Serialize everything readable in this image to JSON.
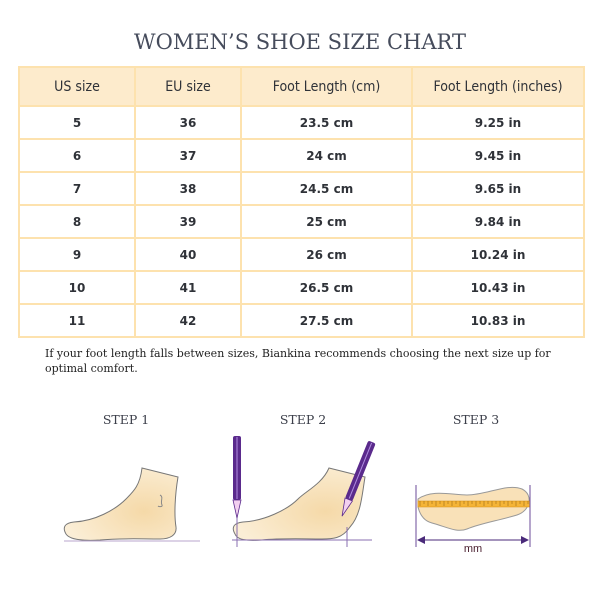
{
  "title": "WOMEN’S SHOE SIZE CHART",
  "table": {
    "headers": [
      "US size",
      "EU size",
      "Foot Length (cm)",
      "Foot Length (inches)"
    ],
    "rows": [
      [
        "5",
        "36",
        "23.5 cm",
        "9.25 in"
      ],
      [
        "6",
        "37",
        "24 cm",
        "9.45 in"
      ],
      [
        "7",
        "38",
        "24.5 cm",
        "9.65 in"
      ],
      [
        "8",
        "39",
        "25 cm",
        "9.84 in"
      ],
      [
        "9",
        "40",
        "26 cm",
        "10.24 in"
      ],
      [
        "10",
        "41",
        "26.5 cm",
        "10.43 in"
      ],
      [
        "11",
        "42",
        "27.5 cm",
        "10.83 in"
      ]
    ]
  },
  "note": "If your foot length falls between sizes, Biankina recommends choosing the next size up for optimal comfort.",
  "steps": [
    {
      "label": "STEP 1",
      "icon": "foot-side-icon"
    },
    {
      "label": "STEP 2",
      "icon": "foot-with-pencils-icon"
    },
    {
      "label": "STEP 3",
      "icon": "footprint-ruler-icon",
      "unit": "mm"
    }
  ],
  "colors": {
    "header_bg": "#fdebcc",
    "border": "#fde2ae",
    "pencil": "#5a2a8c",
    "skin": "#f8e2bf"
  }
}
